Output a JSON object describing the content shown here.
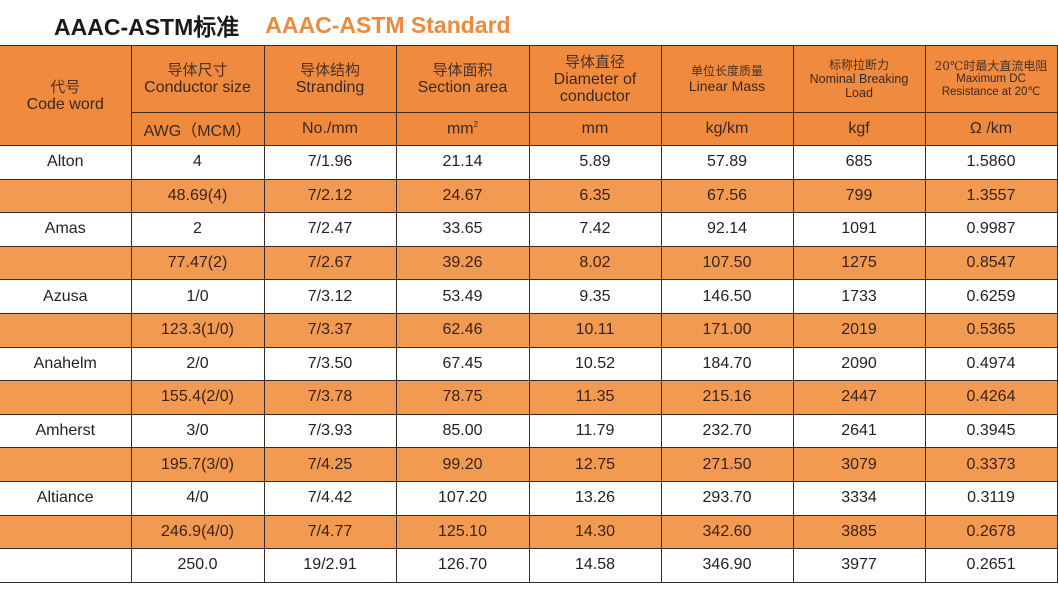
{
  "title": {
    "cn": "AAAC-ASTM标准",
    "en": "AAAC-ASTM Standard"
  },
  "colors": {
    "header_bg": "#ef8a3f",
    "alt_row_bg": "#f29a52",
    "title_accent": "#ee8a3e",
    "border": "#3a2a22"
  },
  "columns": [
    {
      "cn": "代号",
      "en": "Code word",
      "unit": ""
    },
    {
      "cn": "导体尺寸",
      "en": "Conductor size",
      "unit": "AWG（MCM）"
    },
    {
      "cn": "导体结构",
      "en": "Stranding",
      "unit": "No./mm"
    },
    {
      "cn": "导体面积",
      "en": "Section area",
      "unit": "mm²"
    },
    {
      "cn": "导体直径",
      "en": "Diameter of conductor",
      "unit": "mm"
    },
    {
      "cn": "单位长度质量",
      "en": "Linear Mass",
      "unit": "kg/km"
    },
    {
      "cn": "标称拉断力",
      "en": "Nominal Breaking Load",
      "unit": "kgf"
    },
    {
      "cn": "20℃时最大直流电阻",
      "en": "Maximum DC Resistance at 20℃",
      "unit": "Ω/km"
    }
  ],
  "header_labels": {
    "c0_cn": "代号",
    "c0_en": "Code word",
    "c1_cn": "导体尺寸",
    "c1_en": "Conductor size",
    "c1_unit": "AWG（MCM）",
    "c2_cn": "导体结构",
    "c2_en": "Stranding",
    "c2_unit": "No./mm",
    "c3_cn": "导体面积",
    "c3_en": "Section area",
    "c3_unit": "mm",
    "c4_cn": "导体直径",
    "c4_en1": "Diameter of",
    "c4_en2": "conductor",
    "c4_unit": "mm",
    "c5_cn": "单位长度质量",
    "c5_en": "Linear Mass",
    "c5_unit": "kg/km",
    "c6_cn": "标称拉断力",
    "c6_en1": "Nominal Breaking",
    "c6_en2": "Load",
    "c6_unit": "kgf",
    "c7_cn": "20℃时最大直流电阻",
    "c7_en1": "Maximum DC",
    "c7_en2": "Resistance at 20℃",
    "c7_unit": "Ω /km"
  },
  "rows": [
    [
      "Alton",
      "4",
      "7/1.96",
      "21.14",
      "5.89",
      "57.89",
      "685",
      "1.5860"
    ],
    [
      "",
      "48.69(4)",
      "7/2.12",
      "24.67",
      "6.35",
      "67.56",
      "799",
      "1.3557"
    ],
    [
      "Amas",
      "2",
      "7/2.47",
      "33.65",
      "7.42",
      "92.14",
      "1091",
      "0.9987"
    ],
    [
      "",
      "77.47(2)",
      "7/2.67",
      "39.26",
      "8.02",
      "107.50",
      "1275",
      "0.8547"
    ],
    [
      "Azusa",
      "1/0",
      "7/3.12",
      "53.49",
      "9.35",
      "146.50",
      "1733",
      "0.6259"
    ],
    [
      "",
      "123.3(1/0)",
      "7/3.37",
      "62.46",
      "10.11",
      "171.00",
      "2019",
      "0.5365"
    ],
    [
      "Anahelm",
      "2/0",
      "7/3.50",
      "67.45",
      "10.52",
      "184.70",
      "2090",
      "0.4974"
    ],
    [
      "",
      "155.4(2/0)",
      "7/3.78",
      "78.75",
      "11.35",
      "215.16",
      "2447",
      "0.4264"
    ],
    [
      "Amherst",
      "3/0",
      "7/3.93",
      "85.00",
      "11.79",
      "232.70",
      "2641",
      "0.3945"
    ],
    [
      "",
      "195.7(3/0)",
      "7/4.25",
      "99.20",
      "12.75",
      "271.50",
      "3079",
      "0.3373"
    ],
    [
      "Altiance",
      "4/0",
      "7/4.42",
      "107.20",
      "13.26",
      "293.70",
      "3334",
      "0.3119"
    ],
    [
      "",
      "246.9(4/0)",
      "7/4.77",
      "125.10",
      "14.30",
      "342.60",
      "3885",
      "0.2678"
    ],
    [
      "",
      "250.0",
      "19/2.91",
      "126.70",
      "14.58",
      "346.90",
      "3977",
      "0.2651"
    ]
  ]
}
